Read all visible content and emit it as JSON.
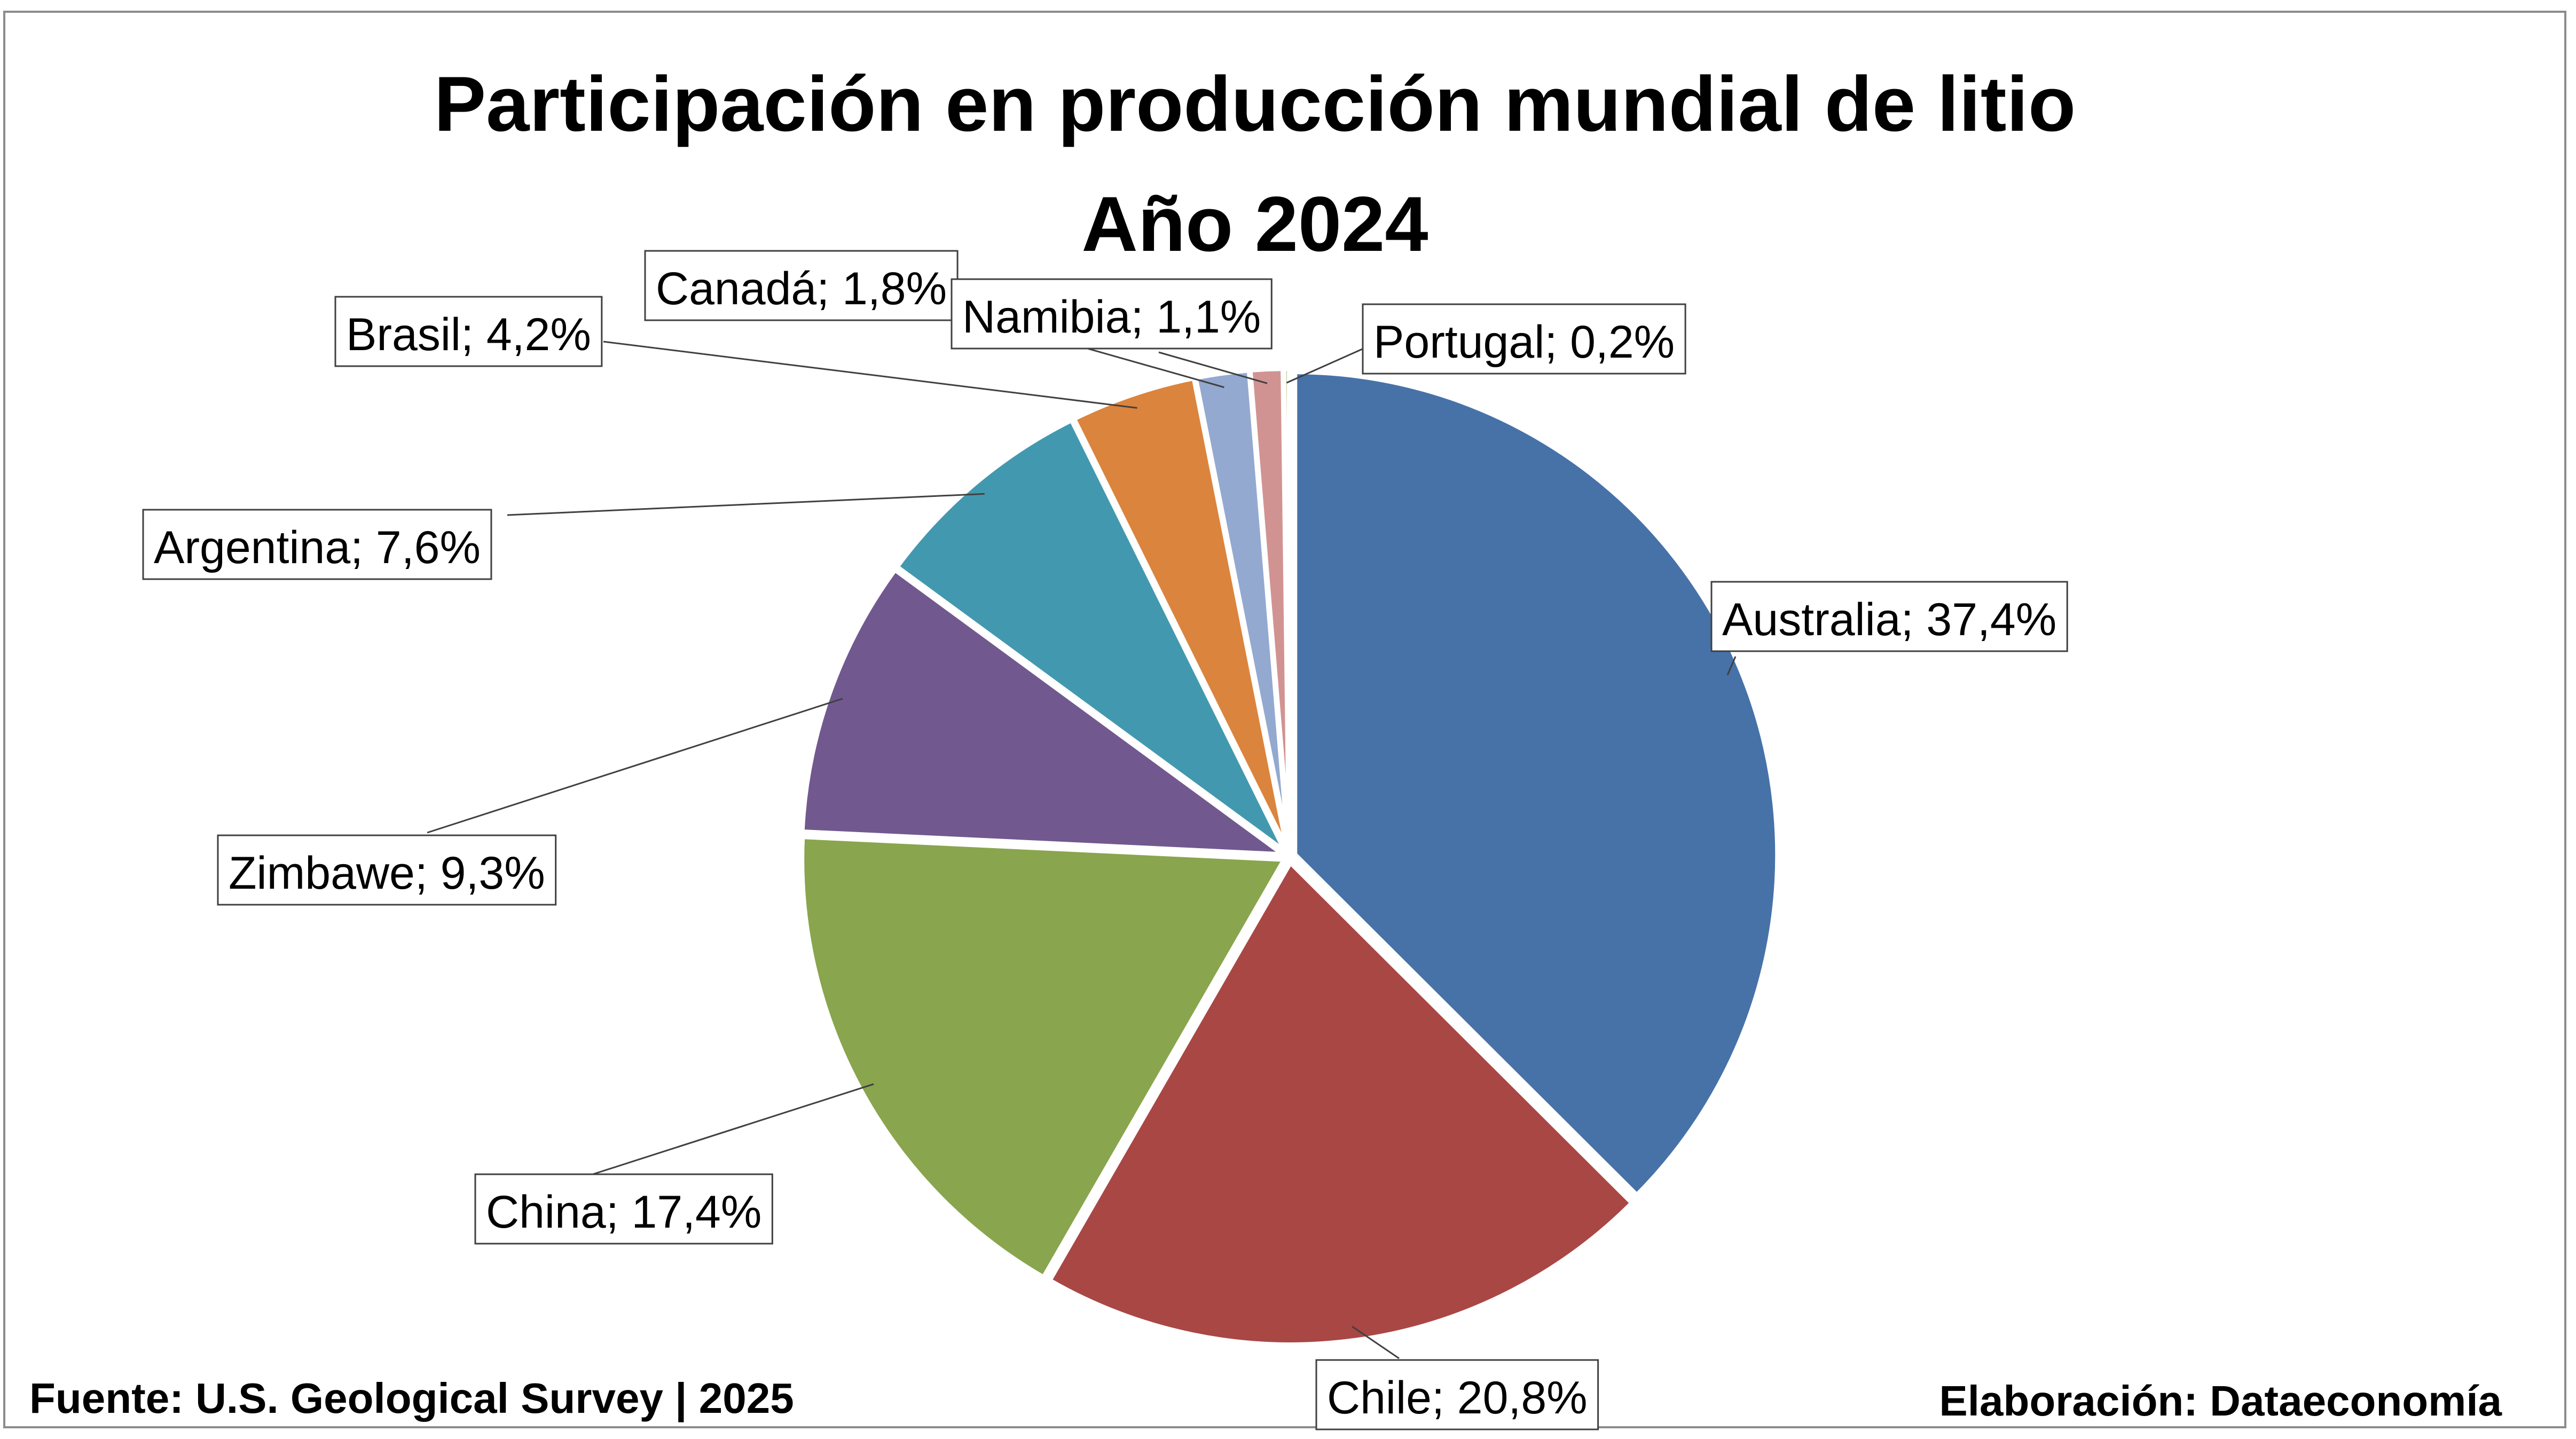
{
  "chart_data": {
    "type": "pie",
    "title": "Participación en producción mundial de litio",
    "subtitle": "Año 2024",
    "slices": [
      {
        "label": "Australia; 37,4%",
        "name": "Australia",
        "value": 37.4,
        "color": "#4672A8"
      },
      {
        "label": "Chile; 20,8%",
        "name": "Chile",
        "value": 20.8,
        "color": "#A94745"
      },
      {
        "label": "China; 17,4%",
        "name": "China",
        "value": 17.4,
        "color": "#89A54E"
      },
      {
        "label": "Zimbawe; 9,3%",
        "name": "Zimbawe",
        "value": 9.3,
        "color": "#71598F"
      },
      {
        "label": "Argentina; 7,6%",
        "name": "Argentina",
        "value": 7.6,
        "color": "#4299AF"
      },
      {
        "label": "Brasil; 4,2%",
        "name": "Brasil",
        "value": 4.2,
        "color": "#DB843D"
      },
      {
        "label": "Canadá; 1,8%",
        "name": "Canadá",
        "value": 1.8,
        "color": "#93A9CF"
      },
      {
        "label": "Namibia; 1,1%",
        "name": "Namibia",
        "value": 1.1,
        "color": "#D19392"
      },
      {
        "label": "Portugal; 0,2%",
        "name": "Portugal",
        "value": 0.2,
        "color": "#B9CD96"
      }
    ],
    "start_angle": "12 o'clock",
    "direction": "clockwise",
    "legend": "none"
  },
  "footer": {
    "source": "Fuente: U.S. Geological Survey | 2025",
    "credit": "Elaboración: Dataeconomía"
  }
}
